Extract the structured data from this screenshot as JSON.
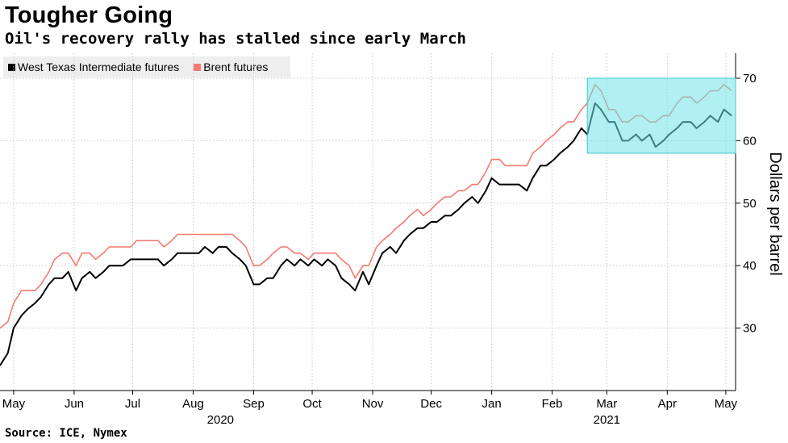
{
  "header": {
    "title": "Tougher Going",
    "subtitle": "Oil's recovery rally has stalled since early March"
  },
  "footer": {
    "source": "Source: ICE, Nymex"
  },
  "legend": {
    "wti_label": "West Texas Intermediate futures",
    "brent_label": "Brent futures"
  },
  "colors": {
    "wti": "#000000",
    "brent": "#f47a6f",
    "highlight_fill": "#6fe3e7",
    "highlight_stroke": "#3cc7cc",
    "grid": "#c8c8c8"
  },
  "chart_data": {
    "type": "line",
    "title": "Tougher Going",
    "subtitle": "Oil's recovery rally has stalled since early March",
    "ylabel": "Dollars per barrel",
    "ylim": [
      20,
      74
    ],
    "yticks": [
      30,
      40,
      50,
      60,
      70
    ],
    "xlim": [
      "2020-04-24",
      "2021-05-06"
    ],
    "xticks": [
      {
        "label": "May",
        "date": "2020-05-01"
      },
      {
        "label": "Jun",
        "date": "2020-06-01"
      },
      {
        "label": "Jul",
        "date": "2020-07-01"
      },
      {
        "label": "Aug",
        "date": "2020-08-01"
      },
      {
        "label": "Sep",
        "date": "2020-09-01"
      },
      {
        "label": "Oct",
        "date": "2020-10-01"
      },
      {
        "label": "Nov",
        "date": "2020-11-01"
      },
      {
        "label": "Dec",
        "date": "2020-12-01"
      },
      {
        "label": "Jan",
        "date": "2021-01-01"
      },
      {
        "label": "Feb",
        "date": "2021-02-01"
      },
      {
        "label": "Mar",
        "date": "2021-03-01"
      },
      {
        "label": "Apr",
        "date": "2021-04-01"
      },
      {
        "label": "May",
        "date": "2021-05-01"
      }
    ],
    "year_labels": [
      {
        "label": "2020",
        "date": "2020-08-15"
      },
      {
        "label": "2021",
        "date": "2021-03-01"
      }
    ],
    "grid": true,
    "legend_position": "top-left",
    "highlight": {
      "x0": "2021-02-19",
      "x1": "2021-05-06",
      "y0": 58,
      "y1": 70
    },
    "series": [
      {
        "name": "West Texas Intermediate futures",
        "x": [
          "2020-04-24",
          "2020-04-28",
          "2020-05-01",
          "2020-05-05",
          "2020-05-08",
          "2020-05-12",
          "2020-05-15",
          "2020-05-19",
          "2020-05-22",
          "2020-05-26",
          "2020-05-29",
          "2020-06-02",
          "2020-06-05",
          "2020-06-09",
          "2020-06-12",
          "2020-06-16",
          "2020-06-19",
          "2020-06-23",
          "2020-06-26",
          "2020-06-30",
          "2020-07-03",
          "2020-07-07",
          "2020-07-10",
          "2020-07-14",
          "2020-07-17",
          "2020-07-21",
          "2020-07-24",
          "2020-07-28",
          "2020-07-31",
          "2020-08-04",
          "2020-08-07",
          "2020-08-11",
          "2020-08-14",
          "2020-08-18",
          "2020-08-21",
          "2020-08-25",
          "2020-08-28",
          "2020-09-01",
          "2020-09-04",
          "2020-09-08",
          "2020-09-11",
          "2020-09-15",
          "2020-09-18",
          "2020-09-22",
          "2020-09-25",
          "2020-09-29",
          "2020-10-02",
          "2020-10-06",
          "2020-10-09",
          "2020-10-13",
          "2020-10-16",
          "2020-10-20",
          "2020-10-23",
          "2020-10-27",
          "2020-10-30",
          "2020-11-03",
          "2020-11-06",
          "2020-11-10",
          "2020-11-13",
          "2020-11-17",
          "2020-11-20",
          "2020-11-24",
          "2020-11-27",
          "2020-12-01",
          "2020-12-04",
          "2020-12-08",
          "2020-12-11",
          "2020-12-15",
          "2020-12-18",
          "2020-12-22",
          "2020-12-25",
          "2020-12-29",
          "2021-01-01",
          "2021-01-05",
          "2021-01-08",
          "2021-01-12",
          "2021-01-15",
          "2021-01-19",
          "2021-01-22",
          "2021-01-26",
          "2021-01-29",
          "2021-02-02",
          "2021-02-05",
          "2021-02-09",
          "2021-02-12",
          "2021-02-16",
          "2021-02-19",
          "2021-02-23",
          "2021-02-26",
          "2021-03-02",
          "2021-03-05",
          "2021-03-09",
          "2021-03-12",
          "2021-03-16",
          "2021-03-19",
          "2021-03-23",
          "2021-03-26",
          "2021-03-30",
          "2021-04-02",
          "2021-04-06",
          "2021-04-09",
          "2021-04-13",
          "2021-04-16",
          "2021-04-20",
          "2021-04-23",
          "2021-04-27",
          "2021-04-30",
          "2021-05-04"
        ],
        "values": [
          24,
          26,
          30,
          32,
          33,
          34,
          35,
          37,
          38,
          38,
          39,
          36,
          38,
          39,
          38,
          39,
          40,
          40,
          40,
          41,
          41,
          41,
          41,
          41,
          40,
          41,
          42,
          42,
          42,
          42,
          43,
          42,
          43,
          43,
          42,
          41,
          40,
          37,
          37,
          38,
          38,
          40,
          41,
          40,
          41,
          40,
          41,
          40,
          41,
          40,
          38,
          37,
          36,
          39,
          37,
          40,
          42,
          43,
          42,
          44,
          45,
          46,
          46,
          47,
          47,
          48,
          48,
          49,
          50,
          51,
          50,
          52,
          54,
          53,
          53,
          53,
          53,
          52,
          54,
          56,
          56,
          57,
          58,
          59,
          60,
          62,
          61,
          66,
          65,
          63,
          63,
          60,
          60,
          61,
          60,
          61,
          59,
          60,
          61,
          62,
          63,
          63,
          62,
          63,
          64,
          63,
          65,
          64
        ]
      },
      {
        "name": "Brent futures",
        "x": [
          "2020-04-24",
          "2020-04-28",
          "2020-05-01",
          "2020-05-05",
          "2020-05-08",
          "2020-05-12",
          "2020-05-15",
          "2020-05-19",
          "2020-05-22",
          "2020-05-26",
          "2020-05-29",
          "2020-06-02",
          "2020-06-05",
          "2020-06-09",
          "2020-06-12",
          "2020-06-16",
          "2020-06-19",
          "2020-06-23",
          "2020-06-26",
          "2020-06-30",
          "2020-07-03",
          "2020-07-07",
          "2020-07-10",
          "2020-07-14",
          "2020-07-17",
          "2020-07-21",
          "2020-07-24",
          "2020-07-28",
          "2020-07-31",
          "2020-08-04",
          "2020-08-07",
          "2020-08-11",
          "2020-08-14",
          "2020-08-18",
          "2020-08-21",
          "2020-08-25",
          "2020-08-28",
          "2020-09-01",
          "2020-09-04",
          "2020-09-08",
          "2020-09-11",
          "2020-09-15",
          "2020-09-18",
          "2020-09-22",
          "2020-09-25",
          "2020-09-29",
          "2020-10-02",
          "2020-10-06",
          "2020-10-09",
          "2020-10-13",
          "2020-10-16",
          "2020-10-20",
          "2020-10-23",
          "2020-10-27",
          "2020-10-30",
          "2020-11-03",
          "2020-11-06",
          "2020-11-10",
          "2020-11-13",
          "2020-11-17",
          "2020-11-20",
          "2020-11-24",
          "2020-11-27",
          "2020-12-01",
          "2020-12-04",
          "2020-12-08",
          "2020-12-11",
          "2020-12-15",
          "2020-12-18",
          "2020-12-22",
          "2020-12-25",
          "2020-12-29",
          "2021-01-01",
          "2021-01-05",
          "2021-01-08",
          "2021-01-12",
          "2021-01-15",
          "2021-01-19",
          "2021-01-22",
          "2021-01-26",
          "2021-01-29",
          "2021-02-02",
          "2021-02-05",
          "2021-02-09",
          "2021-02-12",
          "2021-02-16",
          "2021-02-19",
          "2021-02-23",
          "2021-02-26",
          "2021-03-02",
          "2021-03-05",
          "2021-03-09",
          "2021-03-12",
          "2021-03-16",
          "2021-03-19",
          "2021-03-23",
          "2021-03-26",
          "2021-03-30",
          "2021-04-02",
          "2021-04-06",
          "2021-04-09",
          "2021-04-13",
          "2021-04-16",
          "2021-04-20",
          "2021-04-23",
          "2021-04-27",
          "2021-04-30",
          "2021-05-04"
        ],
        "values": [
          30,
          31,
          34,
          36,
          36,
          36,
          37,
          39,
          41,
          42,
          42,
          40,
          42,
          42,
          41,
          42,
          43,
          43,
          43,
          43,
          44,
          44,
          44,
          44,
          43,
          44,
          45,
          45,
          45,
          45,
          45,
          45,
          45,
          45,
          45,
          44,
          43,
          40,
          40,
          41,
          42,
          43,
          43,
          42,
          42,
          41,
          42,
          42,
          42,
          42,
          41,
          40,
          38,
          40,
          40,
          43,
          44,
          45,
          46,
          47,
          48,
          49,
          48,
          49,
          50,
          51,
          51,
          52,
          52,
          53,
          53,
          55,
          57,
          57,
          56,
          56,
          56,
          56,
          58,
          59,
          60,
          61,
          62,
          63,
          63,
          65,
          66,
          69,
          68,
          65,
          65,
          63,
          63,
          64,
          64,
          63,
          63,
          64,
          64,
          66,
          67,
          67,
          66,
          67,
          68,
          68,
          69,
          68
        ]
      }
    ]
  }
}
